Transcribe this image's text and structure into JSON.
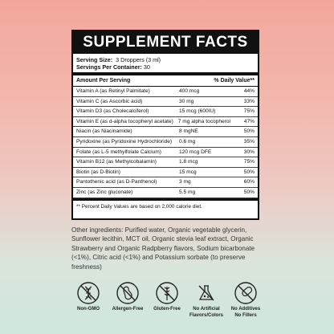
{
  "facts": {
    "title": "SUPPLEMENT FACTS",
    "serving_size_label": "Serving Size:",
    "serving_size_value": "3 Droppers (3 ml)",
    "servings_label": "Servings Per Container:",
    "servings_value": "30",
    "header_amount": "Amount Per Serving",
    "header_dv": "% Daily Value**",
    "rows": [
      {
        "name": "Vitamin A (as Retinyl Palmitate)",
        "amount": "400 mcg",
        "dv": "44%"
      },
      {
        "name": "Vitamin C (as Ascorbic acid)",
        "amount": "30 mg",
        "dv": "33%"
      },
      {
        "name": "Vitamin D3 (as Cholecalciferol)",
        "amount": "15 mcg (600IU)",
        "dv": "75%"
      },
      {
        "name": "Vitamin E (as d-alpha tocopheryl acetate)",
        "amount": "7 mg alpha tocopherol",
        "dv": "47%"
      },
      {
        "name": "Niacin (as Niacinamide)",
        "amount": "8 mgNE",
        "dv": "50%"
      },
      {
        "name": "Pyridoxine (as Pyridoxine Hydrochloride)",
        "amount": "0.6 mg",
        "dv": "35%"
      },
      {
        "name": "Folate (as L-5 methylfolate Calcium)",
        "amount": "120 mcg DFE",
        "dv": "30%"
      },
      {
        "name": "Vitamin B12 (as Methylcobalamin)",
        "amount": "1.8 mcg",
        "dv": "75%"
      },
      {
        "name": "Biotin (as D-Biotin)",
        "amount": "15 mcg",
        "dv": "50%"
      },
      {
        "name": "Pantothenic acid (as D-Panthenol)",
        "amount": "3 mg",
        "dv": "60%"
      },
      {
        "name": "Zinc (as Zinc gluconate)",
        "amount": "5.5 mg",
        "dv": "50%"
      }
    ],
    "footnote": "** Percent Daily Values are based on 2,000 calorie diet."
  },
  "ingredients": "Other ingredients: Purified water, Organic vegetable glycerin, Sunflower lecithin, MCT oil, Organic stevia leaf extract, Organic Strawberry and Organic Radpberry flavors, Sodium bicarbonate (<1%), Citric acid (<1%) and Potassium sorbate (to preserve freshness)",
  "badges": [
    {
      "icon": "dna-icon",
      "label": "Non-GMO"
    },
    {
      "icon": "peanut-icon",
      "label": "Allergen-Free"
    },
    {
      "icon": "wheat-icon",
      "label": "Gluten-Free"
    },
    {
      "icon": "flask-icon",
      "label": "No Artificial\nFlavors/Colors"
    },
    {
      "icon": "capsule-icon",
      "label": "No Additives\nNo Fillers"
    }
  ]
}
